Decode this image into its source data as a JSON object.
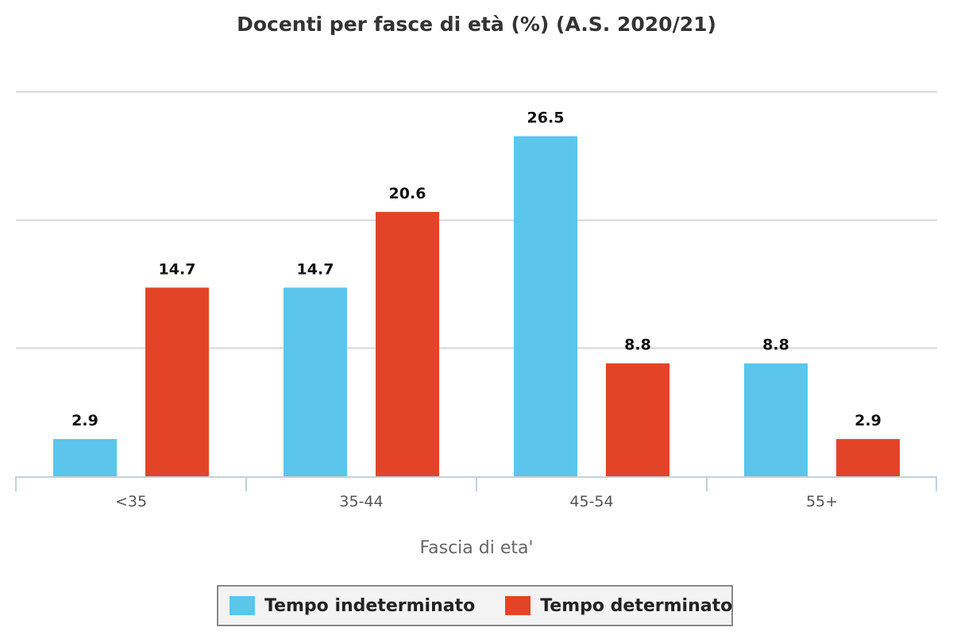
{
  "chart_data": {
    "type": "bar",
    "title": "Docenti per fasce di età (%) (A.S. 2020/21)",
    "xlabel": "Fascia di eta'",
    "ylabel": "",
    "categories": [
      "<35",
      "35-44",
      "45-54",
      "55+"
    ],
    "series": [
      {
        "name": "Tempo indeterminato",
        "color": "#5bc5eb",
        "values": [
          2.9,
          14.7,
          26.5,
          8.8
        ]
      },
      {
        "name": "Tempo determinato",
        "color": "#e34427",
        "values": [
          14.7,
          20.6,
          8.8,
          2.9
        ]
      }
    ],
    "ylim": [
      0,
      30
    ],
    "grid": true,
    "legend_position": "bottom"
  }
}
